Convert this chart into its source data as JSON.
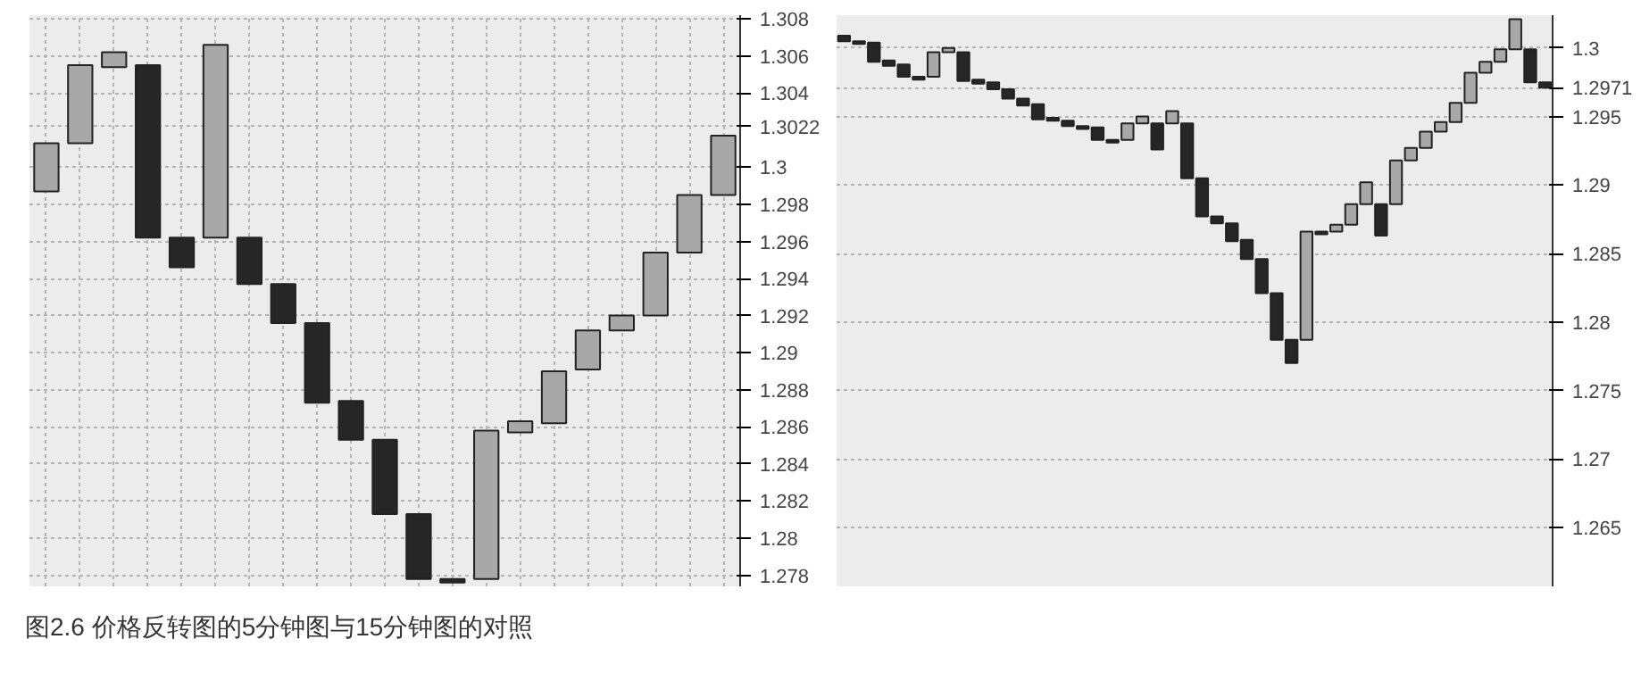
{
  "chart_data": [
    {
      "type": "candlestick",
      "categories": [
        null,
        null,
        null,
        null,
        null,
        null,
        null,
        null,
        null,
        null,
        null,
        null,
        null,
        null,
        null,
        null,
        null,
        null,
        null,
        null,
        null
      ],
      "ohlc": [
        [
          1.2987,
          1.3013,
          1.2987,
          1.3013
        ],
        [
          1.3013,
          1.3055,
          1.3013,
          1.3055
        ],
        [
          1.3054,
          1.3062,
          1.3054,
          1.3062
        ],
        [
          1.3055,
          1.3055,
          1.2962,
          1.2962
        ],
        [
          1.2962,
          1.2962,
          1.2946,
          1.2946
        ],
        [
          1.2962,
          1.3066,
          1.2962,
          1.3066
        ],
        [
          1.2962,
          1.2962,
          1.2937,
          1.2937
        ],
        [
          1.2937,
          1.2937,
          1.2916,
          1.2916
        ],
        [
          1.2916,
          1.2916,
          1.2873,
          1.2873
        ],
        [
          1.2874,
          1.2874,
          1.2853,
          1.2853
        ],
        [
          1.2853,
          1.2853,
          1.2813,
          1.2813
        ],
        [
          1.2813,
          1.2813,
          1.2778,
          1.2778
        ],
        [
          1.2778,
          1.2778,
          1.2776,
          1.2776
        ],
        [
          1.2778,
          1.2858,
          1.2778,
          1.2858
        ],
        [
          1.2857,
          1.2863,
          1.2857,
          1.2863
        ],
        [
          1.2862,
          1.289,
          1.2862,
          1.289
        ],
        [
          1.2891,
          1.2912,
          1.2891,
          1.2912
        ],
        [
          1.2912,
          1.292,
          1.2912,
          1.292
        ],
        [
          1.292,
          1.2954,
          1.292,
          1.2954
        ],
        [
          1.2954,
          1.2985,
          1.2954,
          1.2985
        ],
        [
          1.2985,
          1.3017,
          1.2985,
          1.3017
        ]
      ],
      "colors": [
        "#a8a8a8",
        "#a8a8a8",
        "#a8a8a8",
        "#262626",
        "#262626",
        "#a8a8a8",
        "#262626",
        "#262626",
        "#262626",
        "#262626",
        "#262626",
        "#262626",
        "#262626",
        "#a8a8a8",
        "#a8a8a8",
        "#a8a8a8",
        "#a8a8a8",
        "#a8a8a8",
        "#a8a8a8",
        "#a8a8a8",
        "#a8a8a8"
      ],
      "ylim": [
        1.2774,
        1.3082
      ],
      "yticks": [
        1.278,
        1.28,
        1.282,
        1.284,
        1.286,
        1.288,
        1.29,
        1.292,
        1.294,
        1.296,
        1.298,
        1.3,
        1.3022,
        1.304,
        1.306,
        1.308
      ],
      "grid": true
    },
    {
      "type": "candlestick",
      "categories": [
        null,
        null,
        null,
        null,
        null,
        null,
        null,
        null,
        null,
        null,
        null,
        null,
        null,
        null,
        null,
        null,
        null,
        null,
        null,
        null,
        null,
        null,
        null,
        null,
        null,
        null,
        null,
        null,
        null,
        null,
        null,
        null,
        null,
        null,
        null,
        null,
        null,
        null,
        null,
        null,
        null,
        null,
        null,
        null,
        null,
        null,
        null,
        null
      ],
      "ohlc": [
        [
          1.3009,
          1.3009,
          1.3005,
          1.3005
        ],
        [
          1.3005,
          1.3005,
          1.3003,
          1.3003
        ],
        [
          1.3004,
          1.3004,
          1.299,
          1.299
        ],
        [
          1.2991,
          1.2991,
          1.2987,
          1.2987
        ],
        [
          1.2988,
          1.2988,
          1.2979,
          1.2979
        ],
        [
          1.2979,
          1.2979,
          1.2977,
          1.2977
        ],
        [
          1.2979,
          1.2997,
          1.2979,
          1.2997
        ],
        [
          1.2997,
          1.3,
          1.2997,
          1.3
        ],
        [
          1.2997,
          1.2997,
          1.2976,
          1.2976
        ],
        [
          1.2977,
          1.2977,
          1.2974,
          1.2974
        ],
        [
          1.2975,
          1.2975,
          1.297,
          1.297
        ],
        [
          1.297,
          1.297,
          1.2963,
          1.2963
        ],
        [
          1.2963,
          1.2963,
          1.2958,
          1.2958
        ],
        [
          1.2959,
          1.2959,
          1.2948,
          1.2948
        ],
        [
          1.2949,
          1.2949,
          1.2947,
          1.2947
        ],
        [
          1.2947,
          1.2947,
          1.2943,
          1.2943
        ],
        [
          1.2943,
          1.2943,
          1.2941,
          1.2941
        ],
        [
          1.2942,
          1.2942,
          1.2933,
          1.2933
        ],
        [
          1.2933,
          1.2933,
          1.2931,
          1.2931
        ],
        [
          1.2933,
          1.2945,
          1.2933,
          1.2945
        ],
        [
          1.2945,
          1.295,
          1.2945,
          1.295
        ],
        [
          1.2945,
          1.2945,
          1.2926,
          1.2926
        ],
        [
          1.2945,
          1.2954,
          1.2945,
          1.2954
        ],
        [
          1.2945,
          1.2945,
          1.2905,
          1.2905
        ],
        [
          1.2905,
          1.2905,
          1.2877,
          1.2877
        ],
        [
          1.2877,
          1.2877,
          1.2872,
          1.2872
        ],
        [
          1.2872,
          1.2872,
          1.2859,
          1.2859
        ],
        [
          1.286,
          1.286,
          1.2846,
          1.2846
        ],
        [
          1.2846,
          1.2846,
          1.2821,
          1.2821
        ],
        [
          1.2821,
          1.2821,
          1.2787,
          1.2787
        ],
        [
          1.2787,
          1.2787,
          1.277,
          1.277
        ],
        [
          1.2787,
          1.2866,
          1.2787,
          1.2866
        ],
        [
          1.2866,
          1.2866,
          1.2864,
          1.2864
        ],
        [
          1.2866,
          1.2871,
          1.2866,
          1.2871
        ],
        [
          1.2871,
          1.2886,
          1.2871,
          1.2886
        ],
        [
          1.2886,
          1.2902,
          1.2886,
          1.2902
        ],
        [
          1.2886,
          1.2886,
          1.2863,
          1.2863
        ],
        [
          1.2886,
          1.2918,
          1.2886,
          1.2918
        ],
        [
          1.2918,
          1.2927,
          1.2918,
          1.2927
        ],
        [
          1.2927,
          1.2939,
          1.2927,
          1.2939
        ],
        [
          1.2939,
          1.2946,
          1.2939,
          1.2946
        ],
        [
          1.2946,
          1.296,
          1.2946,
          1.296
        ],
        [
          1.296,
          1.2982,
          1.296,
          1.2982
        ],
        [
          1.2982,
          1.299,
          1.2982,
          1.299
        ],
        [
          1.299,
          1.2999,
          1.299,
          1.2999
        ],
        [
          1.2999,
          1.3021,
          1.2999,
          1.3021
        ],
        [
          1.2999,
          1.2999,
          1.2975,
          1.2975
        ],
        [
          1.2975,
          1.2975,
          1.2971,
          1.2971
        ]
      ],
      "colors": [
        "#262626",
        "#262626",
        "#262626",
        "#262626",
        "#262626",
        "#262626",
        "#a8a8a8",
        "#a8a8a8",
        "#262626",
        "#262626",
        "#262626",
        "#262626",
        "#262626",
        "#262626",
        "#262626",
        "#262626",
        "#262626",
        "#262626",
        "#262626",
        "#a8a8a8",
        "#a8a8a8",
        "#262626",
        "#a8a8a8",
        "#262626",
        "#262626",
        "#262626",
        "#262626",
        "#262626",
        "#262626",
        "#262626",
        "#262626",
        "#a8a8a8",
        "#262626",
        "#a8a8a8",
        "#a8a8a8",
        "#a8a8a8",
        "#262626",
        "#a8a8a8",
        "#a8a8a8",
        "#a8a8a8",
        "#a8a8a8",
        "#a8a8a8",
        "#a8a8a8",
        "#a8a8a8",
        "#a8a8a8",
        "#a8a8a8",
        "#262626",
        "#262626"
      ],
      "ylim": [
        1.2607,
        1.3024
      ],
      "yticks": [
        1.265,
        1.27,
        1.275,
        1.28,
        1.285,
        1.29,
        1.295,
        1.2971,
        1.3
      ],
      "grid": "y",
      "annotations": [
        "图2.6 价格反转图的5分钟图与15分钟图的对照"
      ]
    }
  ]
}
